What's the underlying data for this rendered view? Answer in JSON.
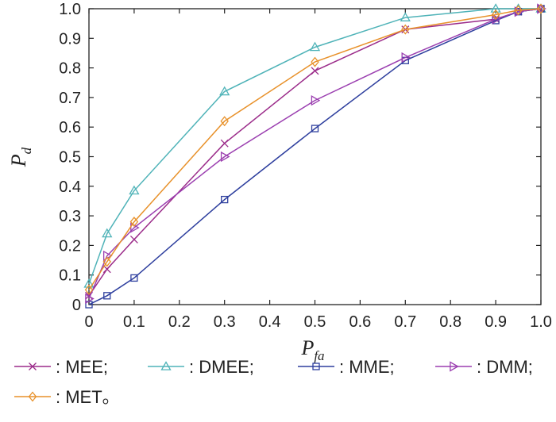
{
  "chart_data": {
    "type": "line",
    "title": "",
    "xlabel": "P_fa",
    "ylabel": "P_d",
    "xlim": [
      0,
      1
    ],
    "ylim": [
      0,
      1
    ],
    "xticks": [
      "0",
      "0.1",
      "0.2",
      "0.3",
      "0.4",
      "0.5",
      "0.6",
      "0.7",
      "0.8",
      "0.9",
      "1.0"
    ],
    "yticks": [
      "0",
      "0.1",
      "0.2",
      "0.3",
      "0.4",
      "0.5",
      "0.6",
      "0.7",
      "0.8",
      "0.9",
      "1.0"
    ],
    "grid": false,
    "legend_position": "bottom",
    "series": [
      {
        "name": ": MEE;",
        "color": "#9b2c8a",
        "marker": "x",
        "points": [
          [
            0,
            0.03
          ],
          [
            0.04,
            0.12
          ],
          [
            0.1,
            0.22
          ],
          [
            0.3,
            0.545
          ],
          [
            0.5,
            0.79
          ],
          [
            0.7,
            0.93
          ],
          [
            0.9,
            0.965
          ],
          [
            0.95,
            0.99
          ],
          [
            1.0,
            1.0
          ]
        ]
      },
      {
        "name": ": DMEE;",
        "color": "#4fb3b8",
        "marker": "triangle-up",
        "points": [
          [
            0,
            0.07
          ],
          [
            0.04,
            0.24
          ],
          [
            0.1,
            0.385
          ],
          [
            0.3,
            0.72
          ],
          [
            0.5,
            0.87
          ],
          [
            0.7,
            0.97
          ],
          [
            0.9,
            1.0
          ],
          [
            0.95,
            1.0
          ],
          [
            1.0,
            1.0
          ]
        ]
      },
      {
        "name": ": MME;",
        "color": "#2e3f9e",
        "marker": "square",
        "points": [
          [
            0,
            0.0
          ],
          [
            0.04,
            0.03
          ],
          [
            0.1,
            0.09
          ],
          [
            0.3,
            0.355
          ],
          [
            0.5,
            0.595
          ],
          [
            0.7,
            0.825
          ],
          [
            0.9,
            0.96
          ],
          [
            0.95,
            0.99
          ],
          [
            1.0,
            1.0
          ]
        ]
      },
      {
        "name": ": DMM;",
        "color": "#9b3fb0",
        "marker": "triangle-right",
        "points": [
          [
            0,
            0.02
          ],
          [
            0.04,
            0.165
          ],
          [
            0.1,
            0.26
          ],
          [
            0.3,
            0.5
          ],
          [
            0.5,
            0.69
          ],
          [
            0.7,
            0.835
          ],
          [
            0.9,
            0.965
          ],
          [
            0.95,
            0.99
          ],
          [
            1.0,
            1.0
          ]
        ]
      },
      {
        "name": ": MET。",
        "color": "#e8912a",
        "marker": "diamond",
        "points": [
          [
            0,
            0.05
          ],
          [
            0.04,
            0.145
          ],
          [
            0.1,
            0.28
          ],
          [
            0.3,
            0.62
          ],
          [
            0.5,
            0.82
          ],
          [
            0.7,
            0.93
          ],
          [
            0.9,
            0.98
          ],
          [
            0.95,
            0.995
          ],
          [
            1.0,
            1.0
          ]
        ]
      }
    ]
  }
}
